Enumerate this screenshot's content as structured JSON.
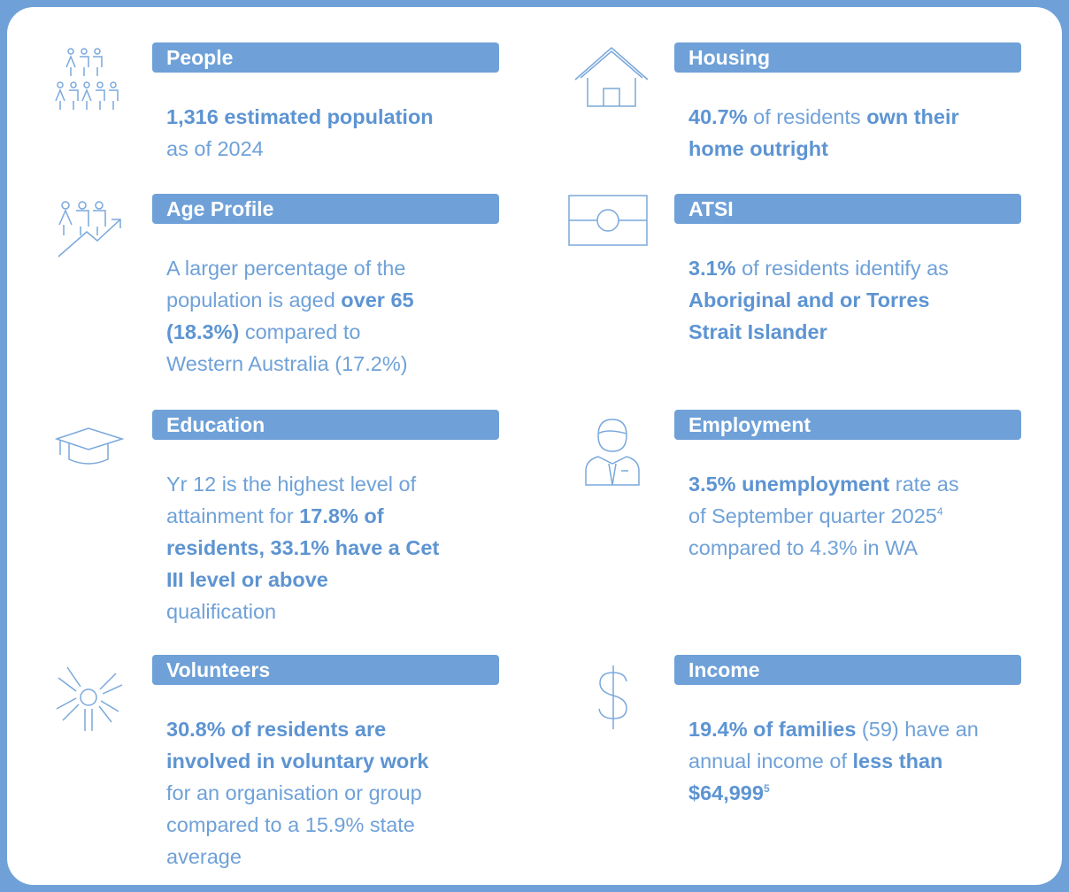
{
  "sections": [
    {
      "title": "People",
      "lines": [
        [
          {
            "text": "1,316 estimated population",
            "bold": true
          }
        ],
        [
          {
            "text": "as of 2024"
          }
        ]
      ]
    },
    {
      "title": "Age Profile",
      "lines": [
        [
          {
            "text": "A larger percentage of the"
          }
        ],
        [
          {
            "text": "population is aged "
          },
          {
            "text": "over 65",
            "bold": true
          }
        ],
        [
          {
            "text": "(18.3%)",
            "bold": true
          },
          {
            "text": " compared to"
          }
        ],
        [
          {
            "text": "Western Australia (17.2%)"
          }
        ]
      ]
    },
    {
      "title": "Education",
      "lines": [
        [
          {
            "text": "Yr 12 is the highest level of"
          }
        ],
        [
          {
            "text": "attainment for "
          },
          {
            "text": "17.8% of",
            "bold": true
          }
        ],
        [
          {
            "text": "residents, 33.1% have a Cet",
            "bold": true
          }
        ],
        [
          {
            "text": "III level or above",
            "bold": true
          }
        ],
        [
          {
            "text": "qualification"
          }
        ]
      ]
    },
    {
      "title": "Volunteers",
      "lines": [
        [
          {
            "text": "30.8% of residents are",
            "bold": true
          }
        ],
        [
          {
            "text": "involved in voluntary work",
            "bold": true
          }
        ],
        [
          {
            "text": "for an organisation or group"
          }
        ],
        [
          {
            "text": "compared to a 15.9% state"
          }
        ],
        [
          {
            "text": "average"
          }
        ]
      ]
    },
    {
      "title": "Housing",
      "lines": [
        [
          {
            "text": "40.7%",
            "bold": true
          },
          {
            "text": " of residents "
          },
          {
            "text": "own their",
            "bold": true
          }
        ],
        [
          {
            "text": "home outright",
            "bold": true
          }
        ]
      ]
    },
    {
      "title": "ATSI",
      "lines": [
        [
          {
            "text": "3.1%",
            "bold": true
          },
          {
            "text": " of residents identify as"
          }
        ],
        [
          {
            "text": "Aboriginal and or Torres",
            "bold": true
          }
        ],
        [
          {
            "text": "Strait Islander",
            "bold": true
          }
        ]
      ]
    },
    {
      "title": "Employment",
      "lines": [
        [
          {
            "text": "3.5% unemployment",
            "bold": true
          },
          {
            "text": " rate as"
          }
        ],
        [
          {
            "text": "of September quarter 2025"
          },
          {
            "text": "4",
            "sup": true
          }
        ],
        [
          {
            "text": "compared to 4.3% in WA"
          }
        ]
      ]
    },
    {
      "title": "Income",
      "lines": [
        [
          {
            "text": "19.4% of families",
            "bold": true
          },
          {
            "text": " (59) have an"
          }
        ],
        [
          {
            "text": "annual income of "
          },
          {
            "text": "less than",
            "bold": true
          }
        ],
        [
          {
            "text": "$64,999",
            "bold": true
          },
          {
            "text": "5",
            "sup": true,
            "bold": true
          }
        ]
      ]
    }
  ]
}
